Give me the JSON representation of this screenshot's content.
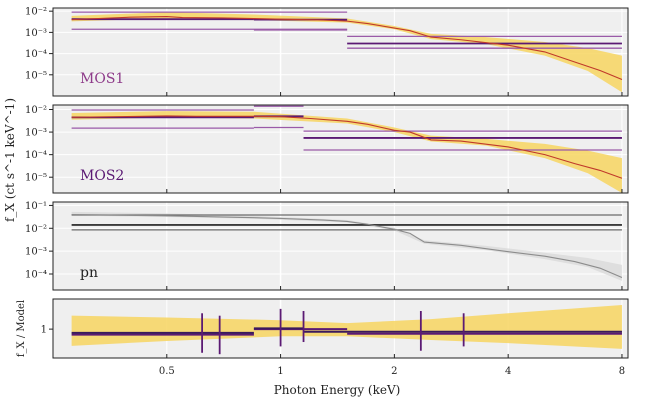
{
  "chart_data": {
    "type": "line",
    "title": "",
    "xlabel": "Photon Energy (keV)",
    "ylabel": "f_X (ct s^-1 keV^-1)",
    "xscale": "log",
    "xlim": [
      0.25,
      8.3
    ],
    "x_ticks": [
      0.5,
      1,
      2,
      4,
      8
    ],
    "x_tick_labels": [
      "0.5",
      "1",
      "2",
      "4",
      "8"
    ],
    "panels": [
      {
        "label": "MOS1",
        "label_color": "#8e3b8a",
        "yscale": "log",
        "ylim_exp": [
          -6,
          -1.85
        ],
        "y_tick_exps": [
          -5,
          -4,
          -3,
          -2
        ],
        "y_tick_labels": [
          "10⁻⁵",
          "10⁻⁴",
          "10⁻³",
          "10⁻²"
        ],
        "model_color": "#c0392b",
        "band_color": "#f7d560",
        "model": [
          [
            0.28,
            4.0
          ],
          [
            0.4,
            5.2
          ],
          [
            0.5,
            5.6
          ],
          [
            0.55,
            5.0
          ],
          [
            0.7,
            4.8
          ],
          [
            0.85,
            4.5
          ],
          [
            1.0,
            4.2
          ],
          [
            1.3,
            3.8
          ],
          [
            1.5,
            3.4
          ],
          [
            1.7,
            2.6
          ],
          [
            2.0,
            1.6
          ],
          [
            2.2,
            1.2
          ],
          [
            2.5,
            0.6
          ],
          [
            3.0,
            0.45
          ],
          [
            4.0,
            0.25
          ],
          [
            5.0,
            0.12
          ],
          [
            6.0,
            0.04
          ],
          [
            7.0,
            0.016
          ],
          [
            8.0,
            0.006
          ]
        ],
        "band_low": [
          [
            0.28,
            3.3
          ],
          [
            0.5,
            4.6
          ],
          [
            0.85,
            3.8
          ],
          [
            1.5,
            2.9
          ],
          [
            2.0,
            1.4
          ],
          [
            2.5,
            0.48
          ],
          [
            3.5,
            0.28
          ],
          [
            5.0,
            0.08
          ],
          [
            6.5,
            0.015
          ],
          [
            8.0,
            0.0015
          ]
        ],
        "band_high": [
          [
            0.28,
            6.0
          ],
          [
            0.5,
            9.0
          ],
          [
            0.85,
            7.0
          ],
          [
            1.5,
            4.5
          ],
          [
            2.0,
            2.0
          ],
          [
            2.5,
            0.85
          ],
          [
            3.5,
            0.6
          ],
          [
            5.0,
            0.35
          ],
          [
            6.5,
            0.18
          ],
          [
            8.0,
            0.08
          ]
        ],
        "data_bins": [
          {
            "x0": 0.28,
            "x1": 0.85,
            "y": 4.2,
            "color": "#5b1a74"
          },
          {
            "x0": 0.85,
            "x1": 1.5,
            "y": 4.0,
            "color": "#5b1a74"
          },
          {
            "x0": 1.5,
            "x1": 8.0,
            "y": 0.3,
            "color": "#5b1a74"
          }
        ],
        "error_bins": [
          {
            "x0": 0.28,
            "x1": 0.85,
            "y": 9.0,
            "color": "#9a5aa8"
          },
          {
            "x0": 0.28,
            "x1": 1.5,
            "y": 1.4,
            "color": "#9a5aa8"
          },
          {
            "x0": 0.85,
            "x1": 1.5,
            "y": 9.0,
            "color": "#9a5aa8"
          },
          {
            "x0": 0.85,
            "x1": 1.5,
            "y": 1.3,
            "color": "#9a5aa8"
          },
          {
            "x0": 1.5,
            "x1": 8.0,
            "y": 0.65,
            "color": "#9a5aa8"
          },
          {
            "x0": 1.5,
            "x1": 8.0,
            "y": 0.18,
            "color": "#9a5aa8"
          }
        ]
      },
      {
        "label": "MOS2",
        "label_color": "#5b1a74",
        "yscale": "log",
        "ylim_exp": [
          -5.7,
          -1.8
        ],
        "y_tick_exps": [
          -5,
          -4,
          -3,
          -2
        ],
        "y_tick_labels": [
          "10⁻⁵",
          "10⁻⁴",
          "10⁻³",
          "10⁻²"
        ],
        "model_color": "#c0392b",
        "band_color": "#f7d560",
        "model": [
          [
            0.28,
            4.5
          ],
          [
            0.5,
            5.2
          ],
          [
            0.6,
            5.0
          ],
          [
            0.85,
            5.0
          ],
          [
            1.0,
            4.8
          ],
          [
            1.2,
            4.0
          ],
          [
            1.5,
            3.0
          ],
          [
            1.7,
            2.2
          ],
          [
            2.0,
            1.2
          ],
          [
            2.2,
            1.0
          ],
          [
            2.5,
            0.45
          ],
          [
            3.0,
            0.4
          ],
          [
            4.0,
            0.22
          ],
          [
            5.0,
            0.1
          ],
          [
            6.0,
            0.04
          ],
          [
            7.0,
            0.02
          ],
          [
            8.0,
            0.009
          ]
        ],
        "band_low": [
          [
            0.28,
            3.5
          ],
          [
            0.5,
            4.4
          ],
          [
            0.85,
            4.0
          ],
          [
            1.5,
            2.4
          ],
          [
            2.0,
            1.0
          ],
          [
            2.5,
            0.38
          ],
          [
            3.5,
            0.25
          ],
          [
            5.0,
            0.07
          ],
          [
            6.5,
            0.015
          ],
          [
            8.0,
            0.002
          ]
        ],
        "band_high": [
          [
            0.28,
            7.0
          ],
          [
            0.5,
            8.5
          ],
          [
            0.85,
            8.0
          ],
          [
            1.5,
            4.0
          ],
          [
            2.0,
            1.6
          ],
          [
            2.5,
            0.7
          ],
          [
            3.5,
            0.5
          ],
          [
            5.0,
            0.3
          ],
          [
            6.5,
            0.15
          ],
          [
            8.0,
            0.07
          ]
        ],
        "data_bins": [
          {
            "x0": 0.28,
            "x1": 0.85,
            "y": 4.5,
            "color": "#5b1a74"
          },
          {
            "x0": 0.85,
            "x1": 1.15,
            "y": 5.0,
            "color": "#5b1a74"
          },
          {
            "x0": 1.15,
            "x1": 8.0,
            "y": 0.55,
            "color": "#5b1a74"
          }
        ],
        "error_bins": [
          {
            "x0": 0.28,
            "x1": 0.85,
            "y": 9.5,
            "color": "#9a5aa8"
          },
          {
            "x0": 0.28,
            "x1": 0.85,
            "y": 1.5,
            "color": "#9a5aa8"
          },
          {
            "x0": 0.85,
            "x1": 1.15,
            "y": 14.0,
            "color": "#9a5aa8"
          },
          {
            "x0": 0.85,
            "x1": 1.15,
            "y": 1.6,
            "color": "#9a5aa8"
          },
          {
            "x0": 1.15,
            "x1": 8.0,
            "y": 1.1,
            "color": "#9a5aa8"
          },
          {
            "x0": 1.15,
            "x1": 8.0,
            "y": 0.16,
            "color": "#9a5aa8"
          }
        ]
      },
      {
        "label": "pn",
        "label_color": "#222222",
        "yscale": "log",
        "ylim_exp": [
          -4.7,
          -0.85
        ],
        "y_tick_exps": [
          -4,
          -3,
          -2,
          -1
        ],
        "y_tick_labels": [
          "10⁻⁴",
          "10⁻³",
          "10⁻²",
          "10⁻¹"
        ],
        "model_color": "#8c8c8c",
        "band_color": "#d9d9d9",
        "model": [
          [
            0.28,
            40
          ],
          [
            0.5,
            35
          ],
          [
            0.6,
            33
          ],
          [
            0.85,
            29
          ],
          [
            1.0,
            27
          ],
          [
            1.3,
            23
          ],
          [
            1.5,
            20
          ],
          [
            1.7,
            15
          ],
          [
            2.0,
            9.0
          ],
          [
            2.2,
            6.0
          ],
          [
            2.4,
            2.5
          ],
          [
            3.0,
            1.8
          ],
          [
            4.0,
            0.95
          ],
          [
            5.0,
            0.6
          ],
          [
            6.0,
            0.35
          ],
          [
            7.0,
            0.18
          ],
          [
            8.0,
            0.07
          ]
        ],
        "band_low": [
          [
            0.28,
            36
          ],
          [
            0.5,
            31
          ],
          [
            0.85,
            26
          ],
          [
            1.5,
            18
          ],
          [
            2.0,
            8.0
          ],
          [
            2.4,
            2.1
          ],
          [
            3.5,
            1.1
          ],
          [
            5.0,
            0.45
          ],
          [
            6.5,
            0.2
          ],
          [
            8.0,
            0.05
          ]
        ],
        "band_high": [
          [
            0.28,
            52
          ],
          [
            0.5,
            45
          ],
          [
            0.85,
            35
          ],
          [
            1.5,
            23
          ],
          [
            2.0,
            10.5
          ],
          [
            2.4,
            3.0
          ],
          [
            3.5,
            1.7
          ],
          [
            5.0,
            0.85
          ],
          [
            6.5,
            0.5
          ],
          [
            8.0,
            0.25
          ]
        ],
        "data_bins": [
          {
            "x0": 0.28,
            "x1": 8.0,
            "y": 14.0,
            "color": "#3a3a3a"
          }
        ],
        "error_bins": [
          {
            "x0": 0.28,
            "x1": 8.0,
            "y": 38.0,
            "color": "#6b6b6b"
          },
          {
            "x0": 0.28,
            "x1": 8.0,
            "y": 8.5,
            "color": "#6b6b6b"
          }
        ]
      },
      {
        "label": "",
        "ylabel": "f_X / Model",
        "yscale": "log",
        "ylim": [
          0.45,
          2.3
        ],
        "y_ticks": [
          1
        ],
        "y_tick_labels": [
          "1"
        ],
        "band_color": "#f7d560",
        "band_low": [
          [
            0.28,
            0.63
          ],
          [
            0.5,
            0.72
          ],
          [
            1.0,
            0.82
          ],
          [
            1.5,
            0.82
          ],
          [
            2.5,
            0.74
          ],
          [
            4.0,
            0.68
          ],
          [
            8.0,
            0.58
          ]
        ],
        "band_high": [
          [
            0.28,
            1.45
          ],
          [
            0.5,
            1.38
          ],
          [
            1.0,
            1.28
          ],
          [
            1.5,
            1.18
          ],
          [
            2.5,
            1.32
          ],
          [
            4.0,
            1.55
          ],
          [
            8.0,
            1.95
          ]
        ],
        "ratio_bins": [
          {
            "x0": 0.28,
            "x1": 0.85,
            "y": 0.86,
            "color": "#5b1a74"
          },
          {
            "x0": 0.85,
            "x1": 1.5,
            "y": 1.0,
            "color": "#5b1a74"
          },
          {
            "x0": 0.28,
            "x1": 0.85,
            "y": 0.9,
            "color": "#3a1a5c"
          },
          {
            "x0": 0.85,
            "x1": 1.15,
            "y": 1.02,
            "color": "#3a1a5c"
          },
          {
            "x0": 1.15,
            "x1": 8.0,
            "y": 0.93,
            "color": "#3a1a5c"
          },
          {
            "x0": 1.5,
            "x1": 8.0,
            "y": 0.88,
            "color": "#5b1a74"
          }
        ],
        "ratio_errors": [
          {
            "x": 0.62,
            "lo": 0.52,
            "hi": 1.55,
            "color": "#5b1a74"
          },
          {
            "x": 0.69,
            "lo": 0.5,
            "hi": 1.45,
            "color": "#5b1a74"
          },
          {
            "x": 1.0,
            "lo": 0.62,
            "hi": 1.75,
            "color": "#5b1a74"
          },
          {
            "x": 1.15,
            "lo": 0.7,
            "hi": 1.65,
            "color": "#5b1a74"
          },
          {
            "x": 2.35,
            "lo": 0.55,
            "hi": 1.65,
            "color": "#5b1a74"
          },
          {
            "x": 3.05,
            "lo": 0.62,
            "hi": 1.55,
            "color": "#5b1a74"
          }
        ]
      }
    ]
  }
}
